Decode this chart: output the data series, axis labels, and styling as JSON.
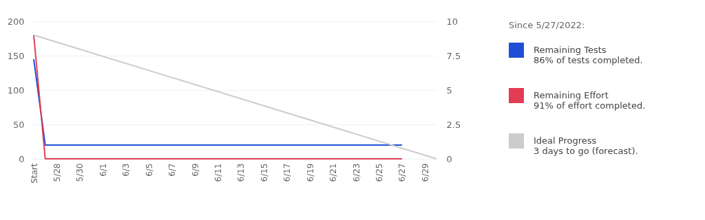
{
  "chart_data": {
    "type": "line",
    "legend_title": "Since 5/27/2022:",
    "annotations": [
      "86% of tests completed.",
      "91% of effort completed.",
      "3 days to go (forecast)."
    ],
    "categories": [
      "Start",
      null,
      "5/28",
      null,
      "5/30",
      null,
      "6/1",
      null,
      "6/3",
      null,
      "6/5",
      null,
      "6/7",
      null,
      "6/9",
      null,
      "6/11",
      null,
      "6/13",
      null,
      "6/15",
      null,
      "6/17",
      null,
      "6/19",
      null,
      "6/21",
      null,
      "6/23",
      null,
      "6/25",
      null,
      "6/27",
      null,
      "6/29",
      null
    ],
    "series": [
      {
        "name": "Remaining Tests",
        "color": "#1f4fd6",
        "values": [
          145,
          20,
          20,
          20,
          20,
          20,
          20,
          20,
          20,
          20,
          20,
          20,
          20,
          20,
          20,
          20,
          20,
          20,
          20,
          20,
          20,
          20,
          20,
          20,
          20,
          20,
          20,
          20,
          20,
          20,
          20,
          20,
          20,
          null,
          null,
          null
        ]
      },
      {
        "name": "Remaining Effort",
        "color": "#e23c55",
        "axis": "y2",
        "values": [
          9,
          0,
          0,
          0,
          0,
          0,
          0,
          0,
          0,
          0,
          0,
          0,
          0,
          0,
          0,
          0,
          0,
          0,
          0,
          0,
          0,
          0,
          0,
          0,
          0,
          0,
          0,
          0,
          0,
          0,
          0,
          0,
          0,
          null,
          null,
          null
        ]
      },
      {
        "name": "Ideal Progress",
        "color": "#cccccc",
        "axis": "y2",
        "values": [
          9,
          null,
          null,
          null,
          null,
          null,
          null,
          null,
          null,
          null,
          null,
          null,
          null,
          null,
          null,
          null,
          null,
          null,
          null,
          null,
          null,
          null,
          null,
          null,
          null,
          null,
          null,
          null,
          null,
          null,
          null,
          null,
          null,
          null,
          null,
          0
        ]
      }
    ],
    "ylim": [
      0,
      200
    ],
    "yticks": [
      0,
      50,
      100,
      150,
      200
    ],
    "y2lim": [
      0,
      10
    ],
    "y2ticks": [
      0,
      2.5,
      5,
      7.5,
      10
    ],
    "grid": "y",
    "legend": "right",
    "marker": "none",
    "line_style": "solid"
  }
}
